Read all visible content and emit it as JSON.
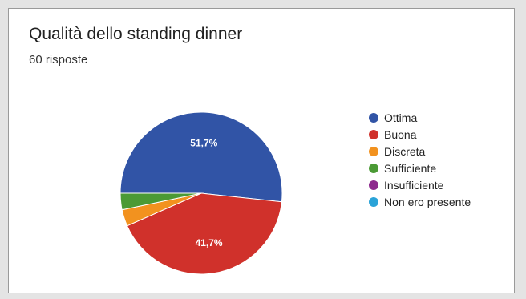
{
  "card": {
    "title": "Qualità dello standing dinner",
    "subtitle": "60 risposte"
  },
  "chart_data": {
    "type": "pie",
    "title": "Qualità dello standing dinner",
    "subtitle": "60 risposte",
    "categories": [
      "Ottima",
      "Buona",
      "Discreta",
      "Sufficiente",
      "Insufficiente",
      "Non ero presente"
    ],
    "values": [
      51.7,
      41.7,
      3.3,
      3.3,
      0,
      0
    ],
    "data_labels": [
      "51,7%",
      "41,7%",
      "",
      "",
      "",
      ""
    ],
    "colors": [
      "#3154a6",
      "#d0312b",
      "#f2921f",
      "#4b9a35",
      "#8e2a8e",
      "#2aa3d8"
    ],
    "legend": "right",
    "start_direction": "left"
  }
}
